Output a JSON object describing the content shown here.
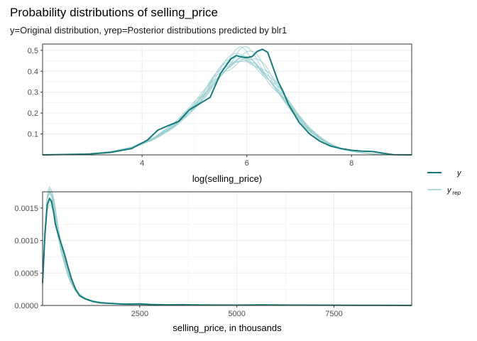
{
  "title": "Probability distributions of selling_price",
  "subtitle": "y=Original distribution, yrep=Posterior distributions predicted by blr1",
  "colors": {
    "y": "#167a7a",
    "yrep": "#9ccfcf",
    "grid": "#ebebeb",
    "panel_border": "#333333"
  },
  "legend": {
    "items": [
      {
        "label": "y",
        "subscript": "",
        "color_key": "y"
      },
      {
        "label": "y",
        "subscript": "rep",
        "color_key": "yrep"
      }
    ]
  },
  "chart_data": [
    {
      "type": "line",
      "xlabel": "log(selling_price)",
      "ylabel": "",
      "xlim": [
        2.1,
        9.15
      ],
      "ylim": [
        0,
        0.53
      ],
      "x_ticks": [
        4,
        6,
        8
      ],
      "y_ticks": [
        0.1,
        0.2,
        0.3,
        0.4,
        0.5
      ],
      "y_tick_labels": [
        "0.1",
        "0.2",
        "0.3",
        "0.4",
        "0.5"
      ],
      "grid": true,
      "legend_position": "right",
      "series": [
        {
          "name": "y",
          "x": [
            2.1,
            3.0,
            3.4,
            3.8,
            4.1,
            4.3,
            4.5,
            4.7,
            4.9,
            5.1,
            5.3,
            5.5,
            5.7,
            5.8,
            5.9,
            6.0,
            6.1,
            6.2,
            6.3,
            6.4,
            6.5,
            6.6,
            6.7,
            6.8,
            7.0,
            7.2,
            7.4,
            7.6,
            7.8,
            8.0,
            8.2,
            8.4,
            8.6,
            8.8,
            9.15
          ],
          "y": [
            0.0,
            0.004,
            0.012,
            0.03,
            0.07,
            0.118,
            0.14,
            0.16,
            0.215,
            0.245,
            0.275,
            0.39,
            0.46,
            0.475,
            0.468,
            0.465,
            0.47,
            0.495,
            0.505,
            0.49,
            0.42,
            0.35,
            0.3,
            0.24,
            0.155,
            0.1,
            0.065,
            0.042,
            0.03,
            0.022,
            0.018,
            0.016,
            0.008,
            0.001,
            0.0
          ]
        }
      ],
      "rep_summary": {
        "name": "y_rep",
        "draws": 10,
        "x": [
          2.1,
          2.6,
          3.0,
          3.4,
          3.8,
          4.2,
          4.6,
          4.8,
          5.0,
          5.2,
          5.4,
          5.6,
          5.8,
          5.9,
          6.0,
          6.1,
          6.2,
          6.4,
          6.6,
          6.8,
          7.0,
          7.2,
          7.4,
          7.6,
          7.8,
          8.0,
          8.2,
          8.4,
          8.6,
          9.15
        ],
        "y": [
          0.0,
          0.002,
          0.006,
          0.015,
          0.035,
          0.075,
          0.14,
          0.185,
          0.235,
          0.29,
          0.36,
          0.42,
          0.465,
          0.48,
          0.475,
          0.46,
          0.44,
          0.38,
          0.31,
          0.24,
          0.175,
          0.12,
          0.08,
          0.05,
          0.03,
          0.018,
          0.01,
          0.005,
          0.002,
          0.0
        ]
      }
    },
    {
      "type": "line",
      "xlabel": "selling_price, in thousands",
      "ylabel": "",
      "xlim": [
        0,
        9500
      ],
      "ylim": [
        0,
        0.00175
      ],
      "x_ticks": [
        2500,
        5000,
        7500
      ],
      "y_ticks": [
        0.0,
        0.0005,
        0.001,
        0.0015
      ],
      "y_tick_labels": [
        "0.0000",
        "0.0005",
        "0.0010",
        "0.0015"
      ],
      "grid": true,
      "series": [
        {
          "name": "y",
          "x": [
            0,
            60,
            120,
            180,
            230,
            280,
            330,
            400,
            480,
            560,
            650,
            750,
            850,
            950,
            1100,
            1300,
            1500,
            1800,
            2100,
            2500,
            2800,
            3200,
            3600,
            4000,
            5000,
            5600,
            6500,
            7500,
            8500,
            9500
          ],
          "y": [
            0.00035,
            0.0011,
            0.00155,
            0.00165,
            0.0016,
            0.00145,
            0.00125,
            0.0011,
            0.00095,
            0.0008,
            0.0006,
            0.0004,
            0.00025,
            0.00015,
            0.0001,
            6e-05,
            4e-05,
            3e-05,
            2e-05,
            2.5e-05,
            1.5e-05,
            1e-05,
            1.2e-05,
            8e-06,
            6e-06,
            1e-05,
            5e-06,
            4e-06,
            3e-06,
            2e-06
          ]
        }
      ],
      "rep_summary": {
        "name": "y_rep",
        "draws": 10,
        "x": [
          0,
          60,
          120,
          180,
          240,
          300,
          380,
          460,
          550,
          650,
          750,
          850,
          950,
          1100,
          1300,
          1500,
          1800,
          2200,
          2600,
          3000,
          4000,
          5000,
          6500,
          8000,
          9500
        ],
        "y": [
          0.0003,
          0.00105,
          0.0016,
          0.0017,
          0.00165,
          0.0015,
          0.0012,
          0.00095,
          0.00072,
          0.0005,
          0.00034,
          0.00024,
          0.00017,
          0.00011,
          7e-05,
          5e-05,
          3e-05,
          1.5e-05,
          1e-05,
          7e-06,
          4e-06,
          2e-06,
          1e-06,
          5e-07,
          0.0
        ]
      }
    }
  ]
}
